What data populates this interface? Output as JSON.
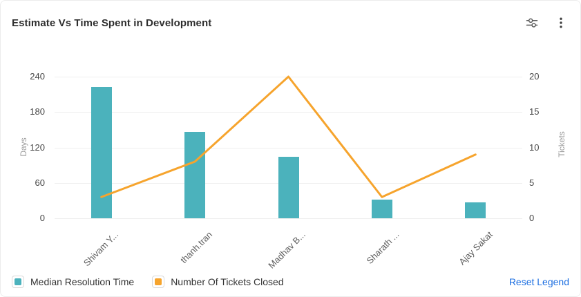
{
  "header": {
    "title": "Estimate Vs Time Spent in Development",
    "icons": [
      {
        "name": "settings-sliders-icon"
      },
      {
        "name": "more-options-icon"
      }
    ]
  },
  "chart_data": {
    "type": "combo-bar-line",
    "categories": [
      "Shivam Y...",
      "thanh.tran",
      "Madhav B...",
      "Sharath ...",
      "Ajay Sakat"
    ],
    "series": [
      {
        "name": "Median Resolution Time",
        "type": "bar",
        "axis": "left",
        "color": "#4BB2BC",
        "values": [
          222,
          146,
          104,
          32,
          27
        ]
      },
      {
        "name": "Number Of Tickets Closed",
        "type": "line",
        "axis": "right",
        "color": "#F6A42D",
        "values": [
          3,
          8,
          20,
          3,
          9
        ]
      }
    ],
    "left_axis": {
      "label": "Days",
      "min": 0,
      "max": 240,
      "ticks": [
        0,
        60,
        120,
        180,
        240
      ]
    },
    "right_axis": {
      "label": "Tickets",
      "min": 0,
      "max": 20,
      "ticks": [
        0,
        5,
        10,
        15,
        20
      ]
    },
    "grid": true,
    "x_label_rotation": -45,
    "legend_position": "bottom-left"
  },
  "legend": {
    "items": [
      {
        "label": "Median Resolution Time",
        "color": "#4BB2BC"
      },
      {
        "label": "Number Of Tickets Closed",
        "color": "#F6A42D"
      }
    ],
    "reset_label": "Reset Legend"
  },
  "colors": {
    "bar_teal": "#4BB2BC",
    "line_orange": "#F6A42D",
    "link_blue": "#1d6fe1",
    "gridline": "#efefef"
  }
}
